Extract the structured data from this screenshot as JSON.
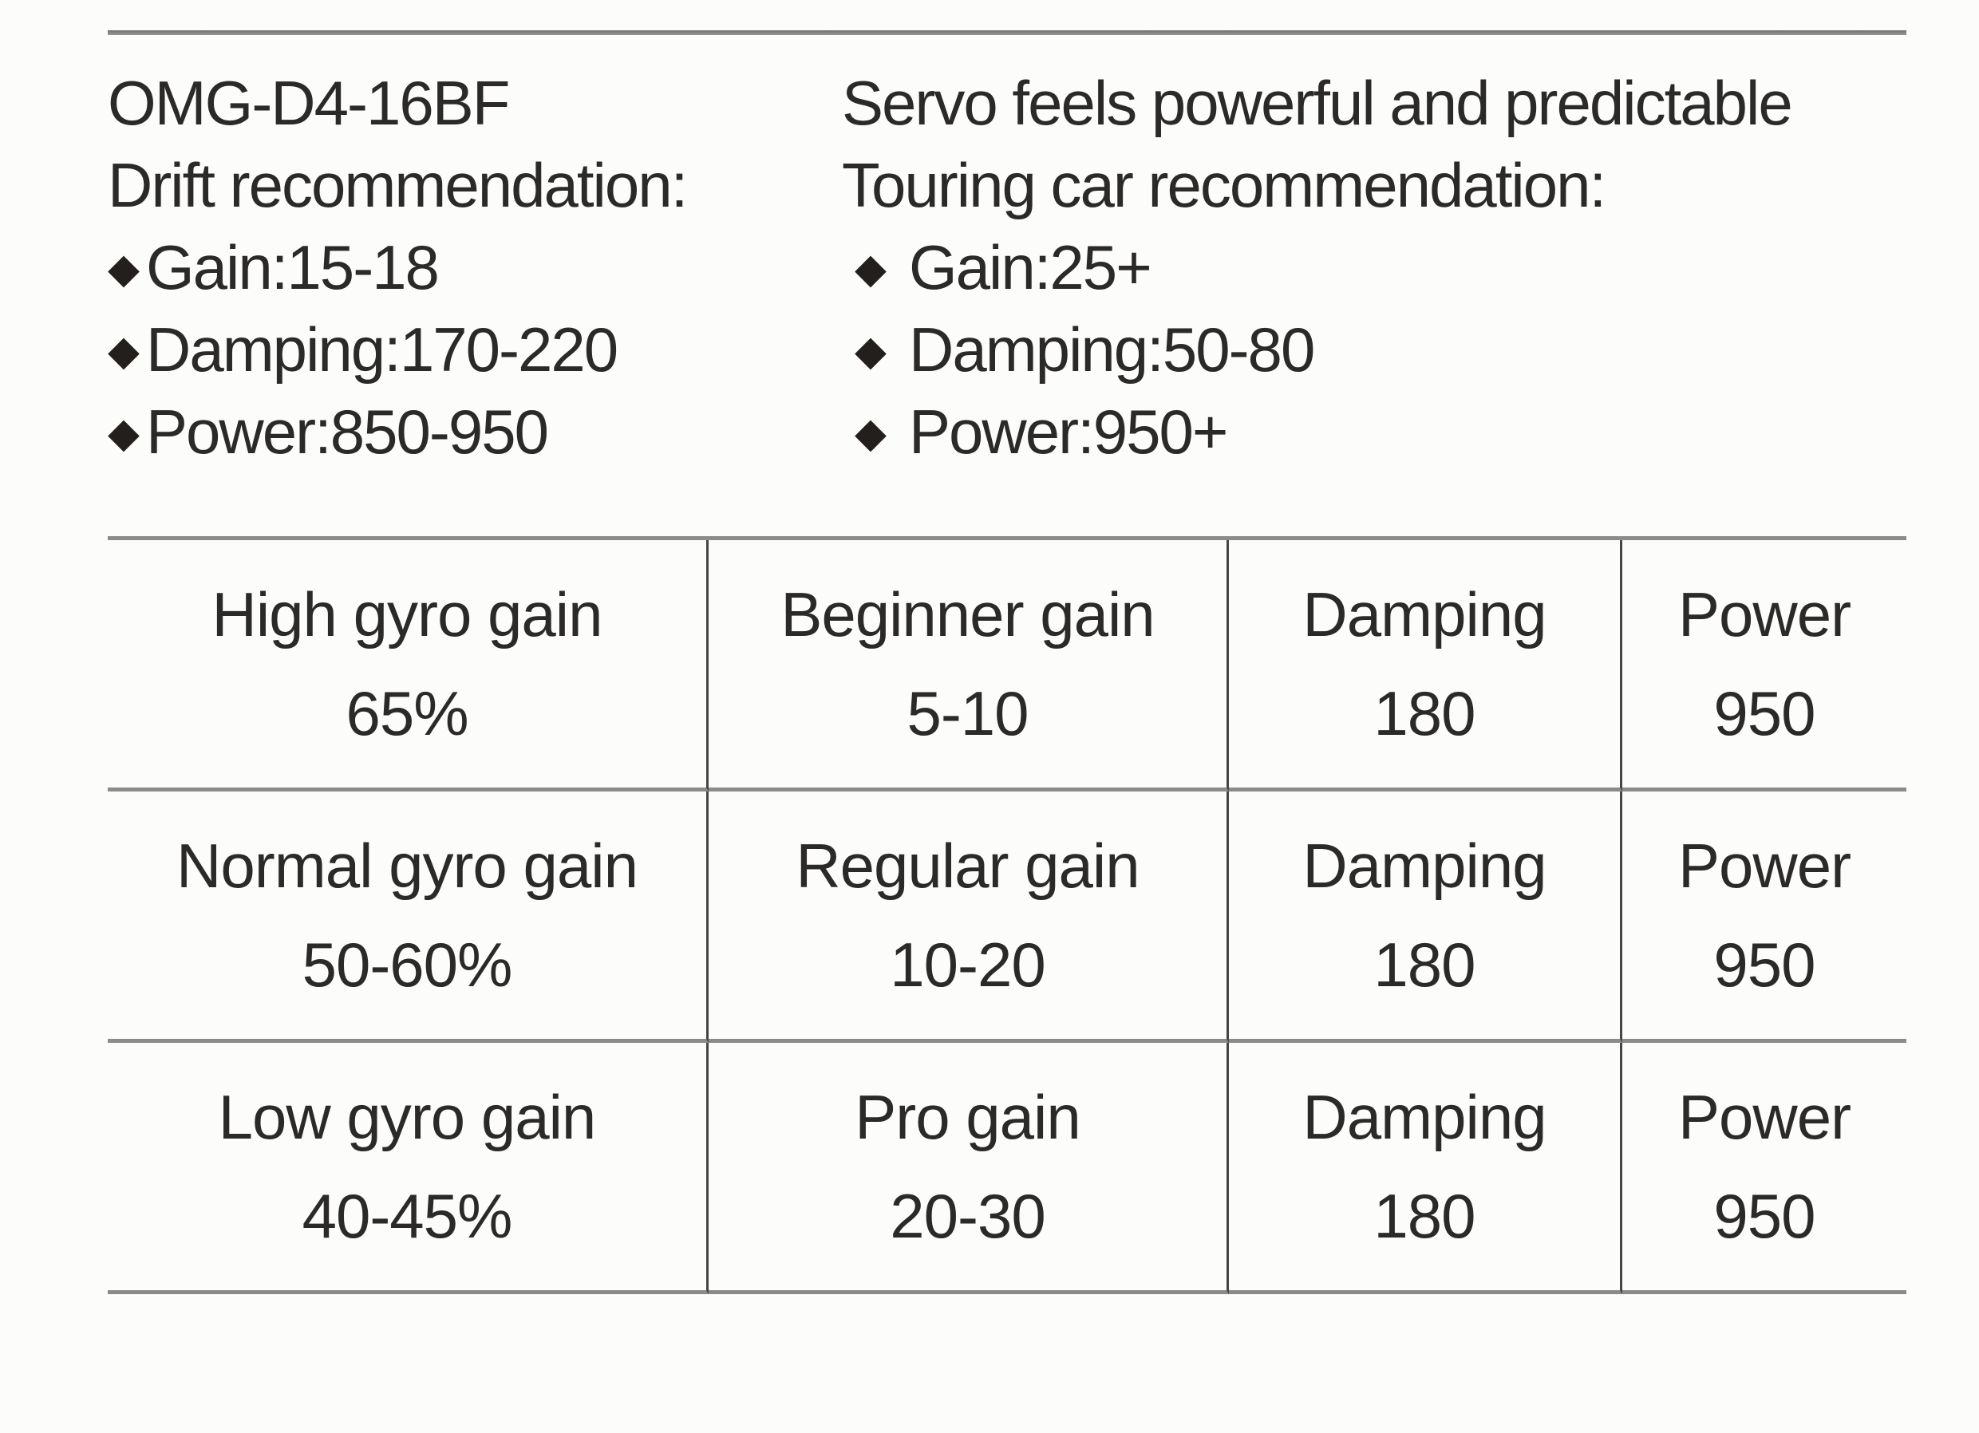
{
  "colors": {
    "background": "#fcfcfb",
    "text": "#2b2a29",
    "top_rule": "#7e7e7e",
    "table_horizontal_line": "#8b8b8b",
    "table_vertical_line": "#454543"
  },
  "icons": {
    "diamond_bullet": "◆"
  },
  "recommendations": {
    "drift": {
      "title": "OMG-D4-16BF",
      "heading": "Drift recommendation:",
      "items": [
        "Gain:15-18",
        "Damping:170-220",
        "Power:850-950"
      ]
    },
    "touring": {
      "title": "Servo feels powerful and predictable",
      "heading": "Touring car recommendation:",
      "items": [
        "Gain:25+",
        "Damping:50-80",
        "Power:950+"
      ]
    }
  },
  "table": {
    "rows": [
      {
        "cells": [
          {
            "line1": "High gyro gain",
            "line2": "65%"
          },
          {
            "line1": "Beginner gain",
            "line2": "5-10"
          },
          {
            "line1": "Damping",
            "line2": "180"
          },
          {
            "line1": "Power",
            "line2": "950"
          }
        ]
      },
      {
        "cells": [
          {
            "line1": "Normal gyro gain",
            "line2": "50-60%"
          },
          {
            "line1": "Regular gain",
            "line2": "10-20"
          },
          {
            "line1": "Damping",
            "line2": "180"
          },
          {
            "line1": "Power",
            "line2": "950"
          }
        ]
      },
      {
        "cells": [
          {
            "line1": "Low gyro gain",
            "line2": "40-45%"
          },
          {
            "line1": "Pro gain",
            "line2": "20-30"
          },
          {
            "line1": "Damping",
            "line2": "180"
          },
          {
            "line1": "Power",
            "line2": "950"
          }
        ]
      }
    ]
  }
}
